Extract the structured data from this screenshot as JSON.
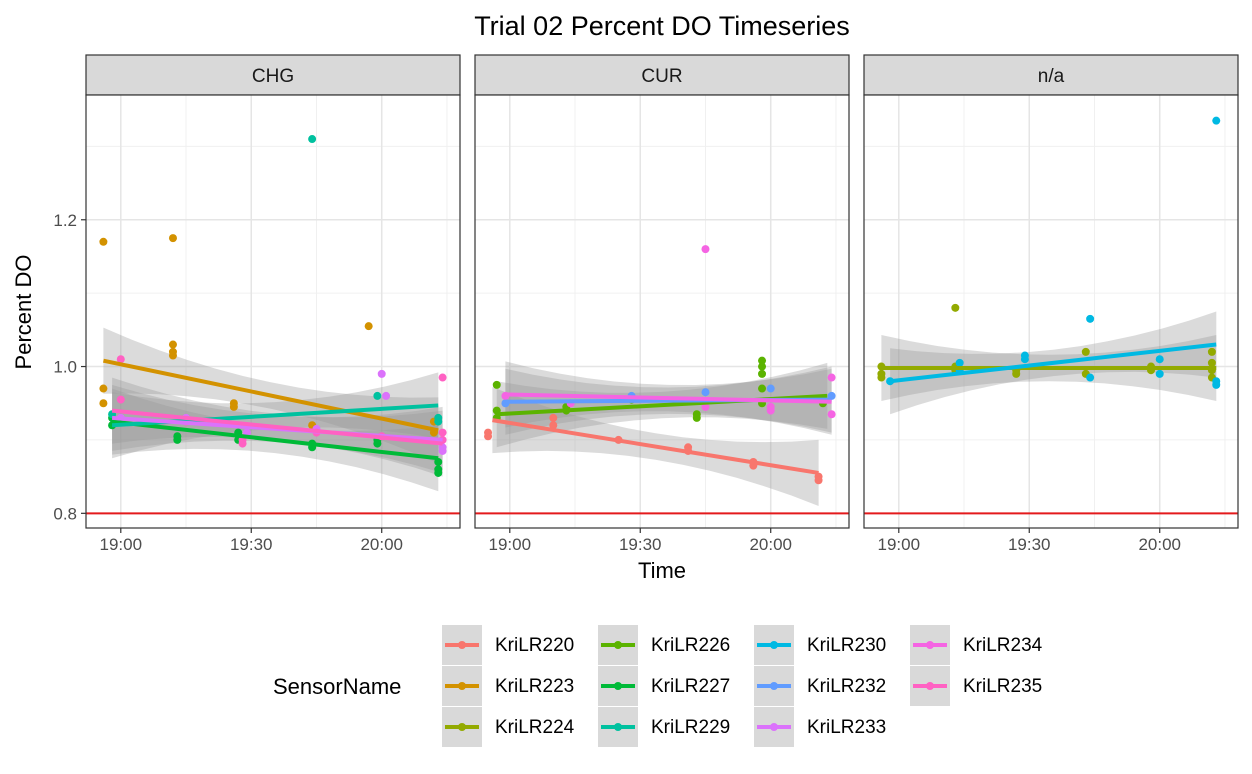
{
  "chart_data": {
    "type": "scatter",
    "title": "Trial 02 Percent DO Timeseries",
    "xlabel": "Time",
    "ylabel": "Percent DO",
    "x_ticks": [
      "19:00",
      "19:30",
      "20:00"
    ],
    "y_ticks": [
      "0.8",
      "1.0",
      "1.2"
    ],
    "xlim": [
      "18:52",
      "20:18"
    ],
    "ylim": [
      0.78,
      1.37
    ],
    "reference_line": {
      "y": 0.8,
      "color": "#e41a1c"
    },
    "legend": {
      "title": "SensorName",
      "position": "bottom"
    },
    "smoother": "linear fit with grey confidence band",
    "series_colors": {
      "KriLR220": "#f8766d",
      "KriLR223": "#d39200",
      "KriLR224": "#93aa00",
      "KriLR226": "#5bb300",
      "KriLR227": "#00ba38",
      "KriLR229": "#00c19f",
      "KriLR230": "#00b9e3",
      "KriLR232": "#619cff",
      "KriLR233": "#db72fb",
      "KriLR234": "#f564e3",
      "KriLR235": "#ff61c3"
    },
    "panels": [
      {
        "name": "CHG",
        "series": [
          {
            "name": "KriLR223",
            "points": [
              [
                "18:56",
                1.17
              ],
              [
                "18:56",
                0.97
              ],
              [
                "18:56",
                0.95
              ],
              [
                "19:12",
                1.175
              ],
              [
                "19:12",
                1.03
              ],
              [
                "19:12",
                1.02
              ],
              [
                "19:12",
                1.015
              ],
              [
                "19:26",
                0.95
              ],
              [
                "19:26",
                0.945
              ],
              [
                "19:44",
                0.92
              ],
              [
                "19:57",
                1.055
              ],
              [
                "20:12",
                0.925
              ],
              [
                "20:12",
                0.91
              ]
            ],
            "fit": {
              "x": [
                "18:56",
                "20:13"
              ],
              "y": [
                1.008,
                0.913
              ]
            }
          },
          {
            "name": "KriLR227",
            "points": [
              [
                "18:58",
                0.93
              ],
              [
                "18:58",
                0.92
              ],
              [
                "19:13",
                0.905
              ],
              [
                "19:13",
                0.9
              ],
              [
                "19:27",
                0.9
              ],
              [
                "19:27",
                0.91
              ],
              [
                "19:44",
                0.895
              ],
              [
                "19:44",
                0.89
              ],
              [
                "19:59",
                0.9
              ],
              [
                "19:59",
                0.895
              ],
              [
                "20:13",
                0.86
              ],
              [
                "20:13",
                0.855
              ],
              [
                "20:13",
                0.87
              ]
            ],
            "fit": {
              "x": [
                "18:58",
                "20:13"
              ],
              "y": [
                0.925,
                0.875
              ]
            }
          },
          {
            "name": "KriLR229",
            "points": [
              [
                "18:58",
                0.935
              ],
              [
                "19:44",
                1.31
              ],
              [
                "19:59",
                0.96
              ],
              [
                "20:13",
                0.93
              ],
              [
                "20:13",
                0.925
              ]
            ],
            "fit": {
              "x": [
                "18:58",
                "20:13"
              ],
              "y": [
                0.92,
                0.947
              ]
            }
          },
          {
            "name": "KriLR233",
            "points": [
              [
                "19:00",
                0.93
              ],
              [
                "19:15",
                0.93
              ],
              [
                "19:29",
                0.91
              ],
              [
                "19:45",
                0.915
              ],
              [
                "20:00",
                0.99
              ],
              [
                "20:01",
                0.96
              ],
              [
                "20:14",
                0.89
              ],
              [
                "20:14",
                0.885
              ]
            ],
            "fit": {
              "x": [
                "18:58",
                "20:14"
              ],
              "y": [
                0.93,
                0.9
              ]
            }
          },
          {
            "name": "KriLR235",
            "points": [
              [
                "19:00",
                1.01
              ],
              [
                "19:00",
                0.955
              ],
              [
                "19:15",
                0.925
              ],
              [
                "19:28",
                0.9
              ],
              [
                "19:28",
                0.895
              ],
              [
                "19:45",
                0.91
              ],
              [
                "20:00",
                0.905
              ],
              [
                "20:14",
                0.985
              ],
              [
                "20:14",
                0.91
              ],
              [
                "20:14",
                0.9
              ]
            ],
            "fit": {
              "x": [
                "18:58",
                "20:14"
              ],
              "y": [
                0.94,
                0.895
              ]
            }
          }
        ]
      },
      {
        "name": "CUR",
        "series": [
          {
            "name": "KriLR220",
            "points": [
              [
                "18:55",
                0.91
              ],
              [
                "18:55",
                0.905
              ],
              [
                "19:10",
                0.93
              ],
              [
                "19:10",
                0.92
              ],
              [
                "19:25",
                0.9
              ],
              [
                "19:41",
                0.89
              ],
              [
                "19:41",
                0.885
              ],
              [
                "19:56",
                0.87
              ],
              [
                "19:56",
                0.865
              ],
              [
                "20:11",
                0.85
              ],
              [
                "20:11",
                0.845
              ]
            ],
            "fit": {
              "x": [
                "18:56",
                "20:11"
              ],
              "y": [
                0.927,
                0.855
              ]
            }
          },
          {
            "name": "KriLR226",
            "points": [
              [
                "18:57",
                0.975
              ],
              [
                "18:57",
                0.94
              ],
              [
                "18:57",
                0.93
              ],
              [
                "19:13",
                0.945
              ],
              [
                "19:13",
                0.94
              ],
              [
                "19:28",
                0.955
              ],
              [
                "19:43",
                0.935
              ],
              [
                "19:43",
                0.93
              ],
              [
                "19:58",
                1.008
              ],
              [
                "19:58",
                1.0
              ],
              [
                "19:58",
                0.99
              ],
              [
                "19:58",
                0.97
              ],
              [
                "19:58",
                0.95
              ],
              [
                "20:12",
                0.95
              ]
            ],
            "fit": {
              "x": [
                "18:57",
                "20:13"
              ],
              "y": [
                0.935,
                0.96
              ]
            }
          },
          {
            "name": "KriLR232",
            "points": [
              [
                "18:59",
                0.95
              ],
              [
                "19:28",
                0.96
              ],
              [
                "19:45",
                0.965
              ],
              [
                "20:00",
                0.97
              ],
              [
                "20:14",
                0.96
              ]
            ],
            "fit": {
              "x": [
                "18:59",
                "20:14"
              ],
              "y": [
                0.952,
                0.955
              ]
            }
          },
          {
            "name": "KriLR234",
            "points": [
              [
                "18:59",
                0.96
              ],
              [
                "19:14",
                0.95
              ],
              [
                "19:45",
                1.16
              ],
              [
                "19:45",
                0.945
              ],
              [
                "20:00",
                0.945
              ],
              [
                "20:00",
                0.94
              ],
              [
                "20:14",
                0.985
              ],
              [
                "20:14",
                0.935
              ]
            ],
            "fit": {
              "x": [
                "18:59",
                "20:14"
              ],
              "y": [
                0.962,
                0.952
              ]
            }
          }
        ]
      },
      {
        "name": "n/a",
        "series": [
          {
            "name": "KriLR224",
            "points": [
              [
                "18:56",
                1.0
              ],
              [
                "18:56",
                0.99
              ],
              [
                "18:56",
                0.985
              ],
              [
                "19:13",
                1.08
              ],
              [
                "19:13",
                1.0
              ],
              [
                "19:13",
                0.995
              ],
              [
                "19:27",
                0.995
              ],
              [
                "19:27",
                0.99
              ],
              [
                "19:43",
                1.02
              ],
              [
                "19:43",
                0.99
              ],
              [
                "19:58",
                1.0
              ],
              [
                "19:58",
                0.995
              ],
              [
                "20:12",
                1.02
              ],
              [
                "20:12",
                1.005
              ],
              [
                "20:12",
                0.995
              ],
              [
                "20:12",
                0.985
              ]
            ],
            "fit": {
              "x": [
                "18:56",
                "20:13"
              ],
              "y": [
                0.998,
                0.998
              ]
            }
          },
          {
            "name": "KriLR230",
            "points": [
              [
                "18:58",
                0.98
              ],
              [
                "19:14",
                1.005
              ],
              [
                "19:14",
                0.995
              ],
              [
                "19:29",
                1.015
              ],
              [
                "19:29",
                1.01
              ],
              [
                "19:44",
                1.065
              ],
              [
                "19:44",
                0.985
              ],
              [
                "20:00",
                1.01
              ],
              [
                "20:00",
                0.99
              ],
              [
                "20:13",
                1.335
              ],
              [
                "20:13",
                0.98
              ],
              [
                "20:13",
                0.975
              ]
            ],
            "fit": {
              "x": [
                "18:58",
                "20:13"
              ],
              "y": [
                0.98,
                1.03
              ]
            }
          }
        ]
      }
    ]
  }
}
